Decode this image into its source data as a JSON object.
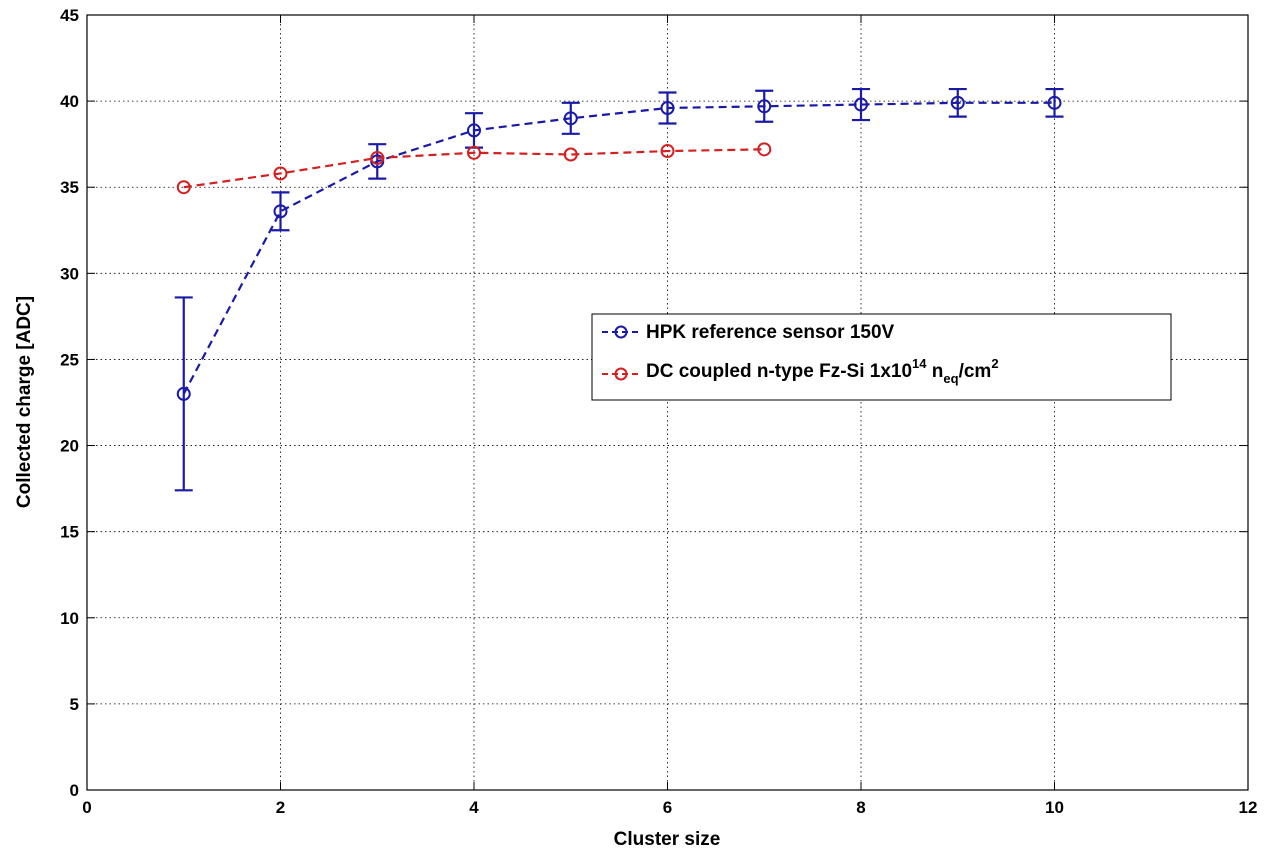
{
  "chart_data": {
    "type": "line",
    "xlabel": "Cluster size",
    "ylabel": "Collected charge [ADC]",
    "xlim": [
      0,
      12
    ],
    "ylim": [
      0,
      45
    ],
    "x_ticks": [
      0,
      2,
      4,
      6,
      8,
      10,
      12
    ],
    "y_ticks": [
      0,
      5,
      10,
      15,
      20,
      25,
      30,
      35,
      40,
      45
    ],
    "grid": true,
    "legend_position": "center-right",
    "series": [
      {
        "name": "HPK reference sensor 150V",
        "color": "#1a1aa8",
        "marker": "circle",
        "line_style": "dashed",
        "x": [
          1,
          2,
          3,
          4,
          5,
          6,
          7,
          8,
          9,
          10
        ],
        "y": [
          23.0,
          33.6,
          36.5,
          38.3,
          39.0,
          39.6,
          39.7,
          39.8,
          39.9,
          39.9
        ],
        "error": [
          5.6,
          1.1,
          1.0,
          1.0,
          0.9,
          0.9,
          0.9,
          0.9,
          0.8,
          0.8
        ]
      },
      {
        "name_parts": {
          "base": "DC coupled n-type Fz-Si 1x10",
          "exp": "14",
          "mid": " n",
          "sub": "eq",
          "unit": "/cm",
          "unit_exp": "2"
        },
        "color": "#d42020",
        "marker": "circle",
        "line_style": "dashed",
        "x": [
          1,
          2,
          3,
          4,
          5,
          6,
          7
        ],
        "y": [
          35.0,
          35.8,
          36.7,
          37.0,
          36.9,
          37.1,
          37.2
        ]
      }
    ]
  }
}
